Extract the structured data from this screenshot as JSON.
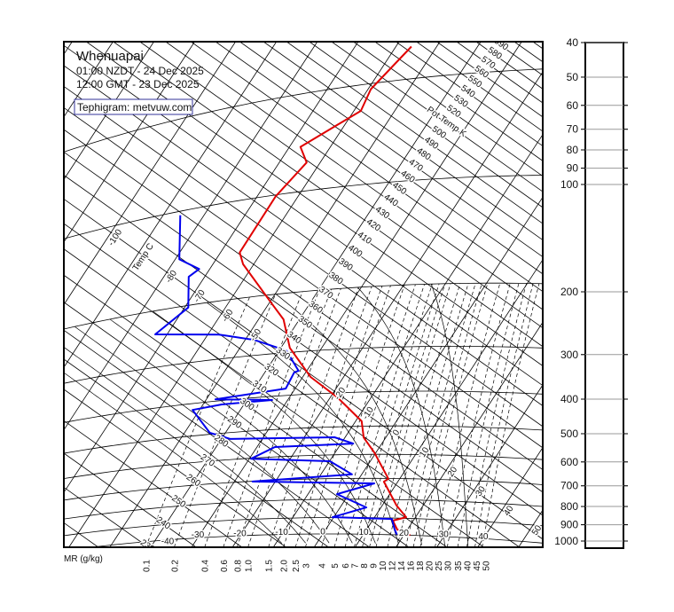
{
  "header": {
    "station": "Whenuapai",
    "local_time": "01:00 NZDT - 24 Dec 2025",
    "gmt_time": "12:00 GMT - 23 Dec 2025",
    "credit": "Tephigram: metvuw.com"
  },
  "chart_data": {
    "type": "line",
    "diagram": "tephigram",
    "isotherm_title": "Temp C",
    "theta_title": "Pot Temp K",
    "mr_axis_label": "MR (g/kg)",
    "pressure_ticks": [
      "40",
      "50",
      "60",
      "70",
      "80",
      "90",
      "100",
      "200",
      "300",
      "400",
      "500",
      "600",
      "700",
      "800",
      "900",
      "1000"
    ],
    "mr_ticks": [
      "0.1",
      "0.2",
      "0.4",
      "0.6",
      "0.8",
      "1.0",
      "1.5",
      "2.0",
      "2.5",
      "3",
      "4",
      "5",
      "6",
      "7",
      "8",
      "9",
      "10",
      "12",
      "14",
      "16",
      "18",
      "20",
      "25",
      "30",
      "35",
      "40",
      "45",
      "50"
    ],
    "isotherm_labels": [
      "-100",
      "-80",
      "-70",
      "-60",
      "-50",
      "-40",
      "-30",
      "-20",
      "-10",
      "0",
      "10",
      "20",
      "30",
      "40",
      "50"
    ],
    "surface_temp_labels": [
      "-20",
      "-10",
      "0",
      "10",
      "20",
      "30",
      "40"
    ],
    "theta_labels": [
      "230",
      "240",
      "250",
      "260",
      "270",
      "280",
      "290",
      "300",
      "310",
      "320",
      "330",
      "340",
      "350",
      "360",
      "370",
      "380",
      "390",
      "400",
      "410",
      "420",
      "430",
      "440",
      "450",
      "460",
      "470",
      "480",
      "490",
      "500",
      "520",
      "530",
      "540",
      "550",
      "560",
      "570",
      "580",
      "590"
    ],
    "isobars_hpa": [
      50,
      100,
      200,
      300,
      400,
      500,
      600,
      700,
      800,
      900,
      1000
    ],
    "pressure_range_hpa": [
      1050,
      40
    ],
    "grid": true,
    "colors": {
      "temperature": "#e00000",
      "dewpoint": "#0000ee",
      "grid": "#000000",
      "credit_border": "#333399"
    },
    "series": [
      {
        "color": "#e00000",
        "points": [
          {
            "p": 1000,
            "T": 21.6
          },
          {
            "p": 967,
            "T": 17.5
          },
          {
            "p": 915,
            "T": 15.0
          },
          {
            "p": 893,
            "T": 17.7
          },
          {
            "p": 831,
            "T": 13.5
          },
          {
            "p": 715,
            "T": 6.6
          },
          {
            "p": 701,
            "T": 7.2
          },
          {
            "p": 593,
            "T": -0.4
          },
          {
            "p": 538,
            "T": -5.4
          },
          {
            "p": 484,
            "T": -8.5
          },
          {
            "p": 412,
            "T": -18.3
          },
          {
            "p": 357,
            "T": -28.1
          },
          {
            "p": 291,
            "T": -37.8
          },
          {
            "p": 239,
            "T": -43.9
          },
          {
            "p": 210,
            "T": -49.9
          },
          {
            "p": 158,
            "T": -62.6
          },
          {
            "p": 145,
            "T": -65.3
          },
          {
            "p": 101,
            "T": -65.5
          },
          {
            "p": 82,
            "T": -63.3
          },
          {
            "p": 73,
            "T": -67.3
          },
          {
            "p": 60,
            "T": -58.3
          },
          {
            "p": 52,
            "T": -59.3
          },
          {
            "p": 40,
            "T": -56.2
          }
        ]
      },
      {
        "color": "#0000ee",
        "points": [
          {
            "p": 998,
            "T": 18.2
          },
          {
            "p": 968,
            "T": 16.9
          },
          {
            "p": 905,
            "T": 14.5
          },
          {
            "p": 898,
            "T": -0.3
          },
          {
            "p": 843,
            "T": 6.4
          },
          {
            "p": 774,
            "T": -2.9
          },
          {
            "p": 723,
            "T": 4.5
          },
          {
            "p": 701,
            "T": -25.6
          },
          {
            "p": 682,
            "T": -2.4
          },
          {
            "p": 625,
            "T": -9.9
          },
          {
            "p": 602,
            "T": -29.6
          },
          {
            "p": 562,
            "T": -25.6
          },
          {
            "p": 559,
            "T": -7.0
          },
          {
            "p": 535,
            "T": -12.6
          },
          {
            "p": 522,
            "T": -37.8
          },
          {
            "p": 495,
            "T": -43.8
          },
          {
            "p": 418,
            "T": -51.7
          },
          {
            "p": 411,
            "T": -45.4
          },
          {
            "p": 410,
            "T": -33.8
          },
          {
            "p": 395,
            "T": -47.8
          },
          {
            "p": 382,
            "T": -32.3
          },
          {
            "p": 344,
            "T": -32.8
          },
          {
            "p": 341,
            "T": -32.0
          },
          {
            "p": 296,
            "T": -38.2
          },
          {
            "p": 270,
            "T": -47.7
          },
          {
            "p": 253,
            "T": -57.3
          },
          {
            "p": 237,
            "T": -72.9
          },
          {
            "p": 203,
            "T": -69.1
          },
          {
            "p": 163,
            "T": -73.9
          },
          {
            "p": 156,
            "T": -72.6
          },
          {
            "p": 142,
            "T": -79.0
          },
          {
            "p": 103,
            "T": -85.8
          }
        ]
      }
    ]
  }
}
